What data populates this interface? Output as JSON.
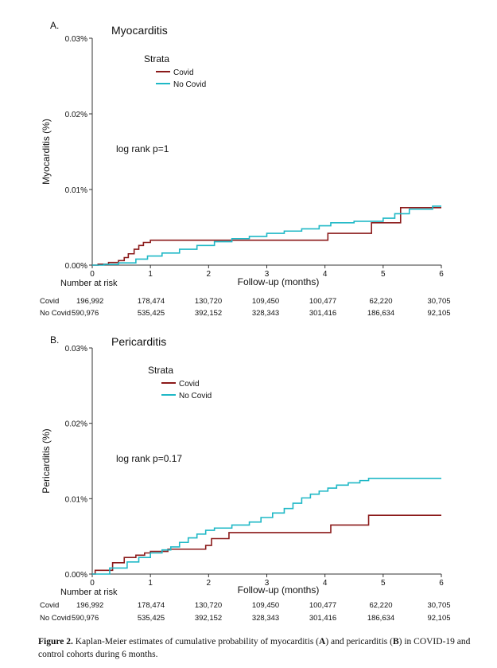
{
  "colors": {
    "covid": "#8B1A1A",
    "no_covid": "#1FB8C6",
    "axis": "#333333"
  },
  "chart_data": [
    {
      "type": "line",
      "panel_label": "A.",
      "title": "Myocarditis",
      "xlabel": "Follow-up (months)",
      "ylabel": "Myocarditis (%)",
      "xlim": [
        0,
        6
      ],
      "ylim": [
        0,
        0.03
      ],
      "x_ticks": [
        "0",
        "1",
        "2",
        "3",
        "4",
        "5",
        "6"
      ],
      "y_ticks": [
        "0.00%",
        "0.01%",
        "0.02%",
        "0.03%"
      ],
      "legend_title": "Strata",
      "legend_placement": "top-center",
      "annotation": "log rank p=1",
      "grid": false,
      "series": [
        {
          "name": "Covid",
          "color": "#8B1A1A",
          "x": [
            0,
            0.1,
            0.28,
            0.45,
            0.55,
            0.62,
            0.72,
            0.8,
            0.88,
            1.0,
            4.05,
            4.8,
            5.3,
            6.0
          ],
          "y": [
            0,
            0.00012,
            0.00035,
            0.0006,
            0.001,
            0.0015,
            0.0021,
            0.0026,
            0.003,
            0.0033,
            0.0042,
            0.0056,
            0.0076,
            0.0076
          ]
        },
        {
          "name": "No Covid",
          "color": "#1FB8C6",
          "x": [
            0,
            0.2,
            0.45,
            0.75,
            0.95,
            1.2,
            1.5,
            1.8,
            2.1,
            2.4,
            2.7,
            3.0,
            3.3,
            3.6,
            3.9,
            4.1,
            4.5,
            5.0,
            5.2,
            5.45,
            5.85,
            6.0
          ],
          "y": [
            0,
            0.0001,
            0.0003,
            0.0008,
            0.0012,
            0.0016,
            0.0021,
            0.0026,
            0.0031,
            0.0035,
            0.0038,
            0.0042,
            0.0045,
            0.0048,
            0.0052,
            0.0056,
            0.0058,
            0.0062,
            0.0068,
            0.0074,
            0.0078,
            0.0078
          ]
        }
      ],
      "risk_table": {
        "header": "Number at risk",
        "rows": [
          {
            "label": "Covid",
            "values": [
              "196,992",
              "178,474",
              "130,720",
              "109,450",
              "100,477",
              "62,220",
              "30,705"
            ]
          },
          {
            "label": "No Covid",
            "values": [
              "590,976",
              "535,425",
              "392,152",
              "328,343",
              "301,416",
              "186,634",
              "92,105"
            ]
          }
        ]
      }
    },
    {
      "type": "line",
      "panel_label": "B.",
      "title": "Pericarditis",
      "xlabel": "Follow-up (months)",
      "ylabel": "Pericarditis (%)",
      "xlim": [
        0,
        6
      ],
      "ylim": [
        0,
        0.03
      ],
      "x_ticks": [
        "0",
        "1",
        "2",
        "3",
        "4",
        "5",
        "6"
      ],
      "y_ticks": [
        "0.00%",
        "0.01%",
        "0.02%",
        "0.03%"
      ],
      "legend_title": "Strata",
      "legend_placement": "top-center",
      "annotation": "log rank p=0.17",
      "grid": false,
      "series": [
        {
          "name": "Covid",
          "color": "#8B1A1A",
          "x": [
            0,
            0.05,
            0.35,
            0.55,
            0.75,
            0.9,
            1.0,
            1.3,
            1.95,
            2.05,
            2.35,
            4.1,
            4.75,
            6.0
          ],
          "y": [
            0,
            0.0005,
            0.0015,
            0.0022,
            0.0025,
            0.0028,
            0.003,
            0.0033,
            0.0038,
            0.0047,
            0.0055,
            0.0065,
            0.0078,
            0.0078
          ]
        },
        {
          "name": "No Covid",
          "color": "#1FB8C6",
          "x": [
            0,
            0.3,
            0.6,
            0.8,
            1.0,
            1.2,
            1.35,
            1.5,
            1.65,
            1.8,
            1.95,
            2.1,
            2.4,
            2.7,
            2.9,
            3.1,
            3.3,
            3.45,
            3.6,
            3.75,
            3.9,
            4.05,
            4.2,
            4.4,
            4.6,
            4.75,
            6.0
          ],
          "y": [
            0,
            0.0008,
            0.0016,
            0.0022,
            0.0028,
            0.0032,
            0.0036,
            0.0042,
            0.0048,
            0.0053,
            0.0058,
            0.0061,
            0.0065,
            0.0069,
            0.0075,
            0.0081,
            0.0087,
            0.0094,
            0.0101,
            0.0106,
            0.011,
            0.0114,
            0.0118,
            0.0121,
            0.0124,
            0.0127,
            0.0127
          ]
        }
      ],
      "risk_table": {
        "header": "Number at risk",
        "rows": [
          {
            "label": "Covid",
            "values": [
              "196,992",
              "178,474",
              "130,720",
              "109,450",
              "100,477",
              "62,220",
              "30,705"
            ]
          },
          {
            "label": "No Covid",
            "values": [
              "590,976",
              "535,425",
              "392,152",
              "328,343",
              "301,416",
              "186,634",
              "92,105"
            ]
          }
        ]
      }
    }
  ],
  "caption": {
    "bold_prefix": "Figure 2.",
    "text_1": " Kaplan-Meier estimates of cumulative probability of myocarditis (",
    "a": "A",
    "text_2": ") and pericarditis (",
    "b": "B",
    "text_3": ") in COVID-19 and control cohorts during 6 months."
  }
}
